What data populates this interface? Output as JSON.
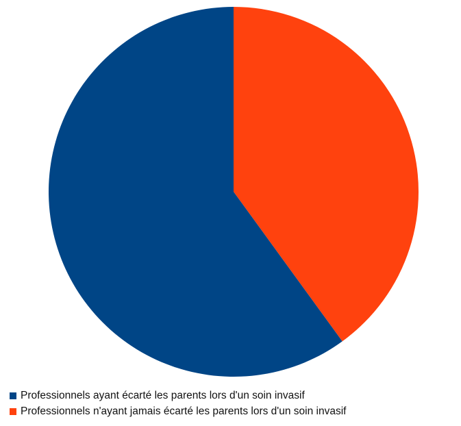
{
  "chart_data": {
    "type": "pie",
    "title": "",
    "legend_position": "bottom-left",
    "start_angle_deg": 0,
    "direction": "clockwise",
    "slices": [
      {
        "label": "Professionnels n'ayant jamais écarté les parents lors d'un soin invasif",
        "value": 40,
        "color": "#ff420e"
      },
      {
        "label": "Professionnels ayant écarté les parents lors d'un soin invasif",
        "value": 60,
        "color": "#004586"
      }
    ]
  },
  "legend": {
    "items": [
      {
        "label": "Professionnels ayant écarté les parents lors d'un soin invasif",
        "color": "#004586"
      },
      {
        "label": "Professionnels n'ayant jamais écarté les parents lors d'un soin invasif",
        "color": "#ff420e"
      }
    ]
  }
}
